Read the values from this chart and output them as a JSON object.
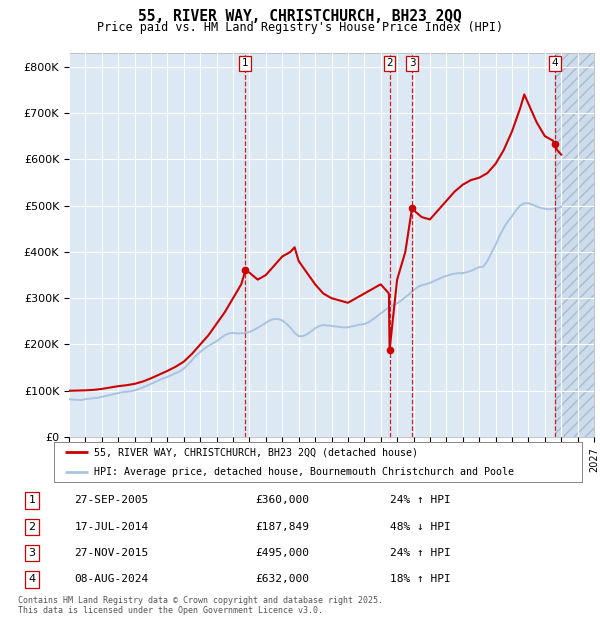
{
  "title": "55, RIVER WAY, CHRISTCHURCH, BH23 2QQ",
  "subtitle": "Price paid vs. HM Land Registry's House Price Index (HPI)",
  "hpi_color": "#aac4e0",
  "price_color": "#cc0000",
  "vline_color": "#cc0000",
  "plot_bg": "#dce8f4",
  "grid_color": "#ffffff",
  "transactions": [
    {
      "label": "1",
      "date": "27-SEP-2005",
      "price": 360000,
      "price_str": "£360,000",
      "pct": "24%",
      "dir": "↑",
      "year": 2005.75
    },
    {
      "label": "2",
      "date": "17-JUL-2014",
      "price": 187849,
      "price_str": "£187,849",
      "pct": "48%",
      "dir": "↓",
      "year": 2014.54
    },
    {
      "label": "3",
      "date": "27-NOV-2015",
      "price": 495000,
      "price_str": "£495,000",
      "pct": "24%",
      "dir": "↑",
      "year": 2015.91
    },
    {
      "label": "4",
      "date": "08-AUG-2024",
      "price": 632000,
      "price_str": "£632,000",
      "pct": "18%",
      "dir": "↑",
      "year": 2024.6
    }
  ],
  "legend_line1": "55, RIVER WAY, CHRISTCHURCH, BH23 2QQ (detached house)",
  "legend_line2": "HPI: Average price, detached house, Bournemouth Christchurch and Poole",
  "footer1": "Contains HM Land Registry data © Crown copyright and database right 2025.",
  "footer2": "This data is licensed under the Open Government Licence v3.0.",
  "hpi_data": [
    [
      1995.0,
      82000
    ],
    [
      1995.25,
      81000
    ],
    [
      1995.5,
      80500
    ],
    [
      1995.75,
      80000
    ],
    [
      1996.0,
      82000
    ],
    [
      1996.25,
      83000
    ],
    [
      1996.5,
      84000
    ],
    [
      1996.75,
      85000
    ],
    [
      1997.0,
      87000
    ],
    [
      1997.25,
      89000
    ],
    [
      1997.5,
      91000
    ],
    [
      1997.75,
      93000
    ],
    [
      1998.0,
      95000
    ],
    [
      1998.25,
      97000
    ],
    [
      1998.5,
      98000
    ],
    [
      1998.75,
      99000
    ],
    [
      1999.0,
      101000
    ],
    [
      1999.25,
      104000
    ],
    [
      1999.5,
      107000
    ],
    [
      1999.75,
      111000
    ],
    [
      2000.0,
      115000
    ],
    [
      2000.25,
      119000
    ],
    [
      2000.5,
      123000
    ],
    [
      2000.75,
      127000
    ],
    [
      2001.0,
      130000
    ],
    [
      2001.25,
      134000
    ],
    [
      2001.5,
      138000
    ],
    [
      2001.75,
      142000
    ],
    [
      2002.0,
      148000
    ],
    [
      2002.25,
      157000
    ],
    [
      2002.5,
      166000
    ],
    [
      2002.75,
      176000
    ],
    [
      2003.0,
      184000
    ],
    [
      2003.25,
      191000
    ],
    [
      2003.5,
      197000
    ],
    [
      2003.75,
      202000
    ],
    [
      2004.0,
      207000
    ],
    [
      2004.25,
      214000
    ],
    [
      2004.5,
      220000
    ],
    [
      2004.75,
      224000
    ],
    [
      2005.0,
      225000
    ],
    [
      2005.25,
      224000
    ],
    [
      2005.5,
      224000
    ],
    [
      2005.75,
      225000
    ],
    [
      2006.0,
      227000
    ],
    [
      2006.25,
      231000
    ],
    [
      2006.5,
      236000
    ],
    [
      2006.75,
      241000
    ],
    [
      2007.0,
      247000
    ],
    [
      2007.25,
      252000
    ],
    [
      2007.5,
      255000
    ],
    [
      2007.75,
      255000
    ],
    [
      2008.0,
      252000
    ],
    [
      2008.25,
      245000
    ],
    [
      2008.5,
      236000
    ],
    [
      2008.75,
      225000
    ],
    [
      2009.0,
      218000
    ],
    [
      2009.25,
      218000
    ],
    [
      2009.5,
      222000
    ],
    [
      2009.75,
      228000
    ],
    [
      2010.0,
      235000
    ],
    [
      2010.25,
      240000
    ],
    [
      2010.5,
      242000
    ],
    [
      2010.75,
      241000
    ],
    [
      2011.0,
      240000
    ],
    [
      2011.25,
      239000
    ],
    [
      2011.5,
      238000
    ],
    [
      2011.75,
      237000
    ],
    [
      2012.0,
      237000
    ],
    [
      2012.25,
      239000
    ],
    [
      2012.5,
      241000
    ],
    [
      2012.75,
      243000
    ],
    [
      2013.0,
      244000
    ],
    [
      2013.25,
      248000
    ],
    [
      2013.5,
      254000
    ],
    [
      2013.75,
      260000
    ],
    [
      2014.0,
      267000
    ],
    [
      2014.25,
      274000
    ],
    [
      2014.5,
      280000
    ],
    [
      2014.75,
      285000
    ],
    [
      2015.0,
      289000
    ],
    [
      2015.25,
      295000
    ],
    [
      2015.5,
      302000
    ],
    [
      2015.75,
      309000
    ],
    [
      2016.0,
      317000
    ],
    [
      2016.25,
      324000
    ],
    [
      2016.5,
      328000
    ],
    [
      2016.75,
      330000
    ],
    [
      2017.0,
      333000
    ],
    [
      2017.25,
      337000
    ],
    [
      2017.5,
      341000
    ],
    [
      2017.75,
      345000
    ],
    [
      2018.0,
      348000
    ],
    [
      2018.25,
      351000
    ],
    [
      2018.5,
      353000
    ],
    [
      2018.75,
      354000
    ],
    [
      2019.0,
      354000
    ],
    [
      2019.25,
      356000
    ],
    [
      2019.5,
      359000
    ],
    [
      2019.75,
      363000
    ],
    [
      2020.0,
      367000
    ],
    [
      2020.25,
      368000
    ],
    [
      2020.5,
      380000
    ],
    [
      2020.75,
      398000
    ],
    [
      2021.0,
      415000
    ],
    [
      2021.25,
      435000
    ],
    [
      2021.5,
      452000
    ],
    [
      2021.75,
      466000
    ],
    [
      2022.0,
      477000
    ],
    [
      2022.25,
      490000
    ],
    [
      2022.5,
      500000
    ],
    [
      2022.75,
      505000
    ],
    [
      2023.0,
      505000
    ],
    [
      2023.25,
      502000
    ],
    [
      2023.5,
      498000
    ],
    [
      2023.75,
      495000
    ],
    [
      2024.0,
      493000
    ],
    [
      2024.25,
      492000
    ],
    [
      2024.5,
      493000
    ],
    [
      2024.75,
      495000
    ],
    [
      2025.0,
      497000
    ]
  ],
  "price_data": [
    [
      1995.0,
      100000
    ],
    [
      1995.5,
      100500
    ],
    [
      1996.0,
      101000
    ],
    [
      1996.5,
      102000
    ],
    [
      1997.0,
      104000
    ],
    [
      1997.5,
      107000
    ],
    [
      1998.0,
      110000
    ],
    [
      1998.5,
      112000
    ],
    [
      1999.0,
      115000
    ],
    [
      1999.5,
      120000
    ],
    [
      2000.0,
      127000
    ],
    [
      2000.5,
      135000
    ],
    [
      2001.0,
      143000
    ],
    [
      2001.5,
      152000
    ],
    [
      2002.0,
      163000
    ],
    [
      2002.5,
      180000
    ],
    [
      2003.0,
      200000
    ],
    [
      2003.5,
      220000
    ],
    [
      2004.0,
      245000
    ],
    [
      2004.5,
      270000
    ],
    [
      2005.0,
      300000
    ],
    [
      2005.5,
      330000
    ],
    [
      2005.75,
      360000
    ],
    [
      2006.0,
      355000
    ],
    [
      2006.5,
      340000
    ],
    [
      2007.0,
      350000
    ],
    [
      2007.5,
      370000
    ],
    [
      2008.0,
      390000
    ],
    [
      2008.5,
      400000
    ],
    [
      2008.75,
      410000
    ],
    [
      2009.0,
      380000
    ],
    [
      2009.5,
      355000
    ],
    [
      2010.0,
      330000
    ],
    [
      2010.5,
      310000
    ],
    [
      2011.0,
      300000
    ],
    [
      2011.5,
      295000
    ],
    [
      2012.0,
      290000
    ],
    [
      2012.5,
      300000
    ],
    [
      2013.0,
      310000
    ],
    [
      2013.5,
      320000
    ],
    [
      2014.0,
      330000
    ],
    [
      2014.5,
      310000
    ],
    [
      2014.54,
      187849
    ],
    [
      2015.0,
      340000
    ],
    [
      2015.5,
      400000
    ],
    [
      2015.91,
      495000
    ],
    [
      2016.0,
      490000
    ],
    [
      2016.5,
      475000
    ],
    [
      2017.0,
      470000
    ],
    [
      2017.5,
      490000
    ],
    [
      2018.0,
      510000
    ],
    [
      2018.5,
      530000
    ],
    [
      2019.0,
      545000
    ],
    [
      2019.5,
      555000
    ],
    [
      2020.0,
      560000
    ],
    [
      2020.5,
      570000
    ],
    [
      2021.0,
      590000
    ],
    [
      2021.5,
      620000
    ],
    [
      2022.0,
      660000
    ],
    [
      2022.5,
      710000
    ],
    [
      2022.75,
      740000
    ],
    [
      2023.0,
      720000
    ],
    [
      2023.5,
      680000
    ],
    [
      2024.0,
      650000
    ],
    [
      2024.5,
      640000
    ],
    [
      2024.6,
      632000
    ],
    [
      2024.75,
      620000
    ],
    [
      2025.0,
      610000
    ]
  ],
  "xmin": 1995,
  "xmax": 2027,
  "ylim": [
    0,
    830000
  ],
  "yticks": [
    0,
    100000,
    200000,
    300000,
    400000,
    500000,
    600000,
    700000,
    800000
  ],
  "ytick_labels": [
    "£0",
    "£100K",
    "£200K",
    "£300K",
    "£400K",
    "£500K",
    "£600K",
    "£700K",
    "£800K"
  ],
  "hatch_start": 2024.6,
  "fig_width": 6.0,
  "fig_height": 6.2
}
